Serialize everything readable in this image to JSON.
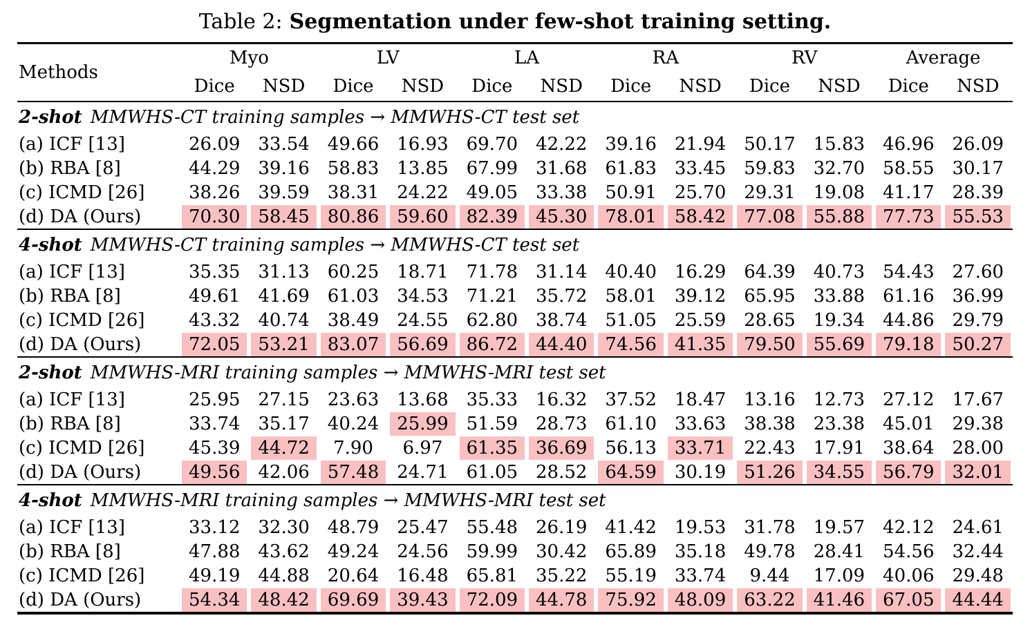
{
  "title": {
    "prefix": "Table 2:",
    "main": "Segmentation under few-shot training setting."
  },
  "colors": {
    "highlight": "#f9c0c2",
    "text": "#000000",
    "background": "#ffffff"
  },
  "header": {
    "methods_label": "Methods",
    "groups": [
      "Myo",
      "LV",
      "LA",
      "RA",
      "RV",
      "Average"
    ],
    "subcolumns": [
      "Dice",
      "NSD"
    ]
  },
  "sections": [
    {
      "shot": "2-shot",
      "caption": "MMWHS-CT training samples → MMWHS-CT test set",
      "rows": [
        {
          "method": "(a) ICF [13]",
          "values": [
            "26.09",
            "33.54",
            "49.66",
            "16.93",
            "69.70",
            "42.22",
            "39.16",
            "21.94",
            "50.17",
            "15.83",
            "46.96",
            "26.09"
          ],
          "highlight": []
        },
        {
          "method": "(b) RBA [8]",
          "values": [
            "44.29",
            "39.16",
            "58.83",
            "13.85",
            "67.99",
            "31.68",
            "61.83",
            "33.45",
            "59.83",
            "32.70",
            "58.55",
            "30.17"
          ],
          "highlight": []
        },
        {
          "method": "(c) ICMD [26]",
          "values": [
            "38.26",
            "39.59",
            "38.31",
            "24.22",
            "49.05",
            "33.38",
            "50.91",
            "25.70",
            "29.31",
            "19.08",
            "41.17",
            "28.39"
          ],
          "highlight": []
        },
        {
          "method": "(d) DA (Ours)",
          "values": [
            "70.30",
            "58.45",
            "80.86",
            "59.60",
            "82.39",
            "45.30",
            "78.01",
            "58.42",
            "77.08",
            "55.88",
            "77.73",
            "55.53"
          ],
          "highlight": [
            0,
            1,
            2,
            3,
            4,
            5,
            6,
            7,
            8,
            9,
            10,
            11
          ]
        }
      ]
    },
    {
      "shot": "4-shot",
      "caption": "MMWHS-CT training samples → MMWHS-CT test set",
      "rows": [
        {
          "method": "(a) ICF [13]",
          "values": [
            "35.35",
            "31.13",
            "60.25",
            "18.71",
            "71.78",
            "31.14",
            "40.40",
            "16.29",
            "64.39",
            "40.73",
            "54.43",
            "27.60"
          ],
          "highlight": []
        },
        {
          "method": "(b) RBA [8]",
          "values": [
            "49.61",
            "41.69",
            "61.03",
            "34.53",
            "71.21",
            "35.72",
            "58.01",
            "39.12",
            "65.95",
            "33.88",
            "61.16",
            "36.99"
          ],
          "highlight": []
        },
        {
          "method": "(c) ICMD [26]",
          "values": [
            "43.32",
            "40.74",
            "38.49",
            "24.55",
            "62.80",
            "38.74",
            "51.05",
            "25.59",
            "28.65",
            "19.34",
            "44.86",
            "29.79"
          ],
          "highlight": []
        },
        {
          "method": "(d) DA (Ours)",
          "values": [
            "72.05",
            "53.21",
            "83.07",
            "56.69",
            "86.72",
            "44.40",
            "74.56",
            "41.35",
            "79.50",
            "55.69",
            "79.18",
            "50.27"
          ],
          "highlight": [
            0,
            1,
            2,
            3,
            4,
            5,
            6,
            7,
            8,
            9,
            10,
            11
          ]
        }
      ]
    },
    {
      "shot": "2-shot",
      "caption": "MMWHS-MRI training samples → MMWHS-MRI test set",
      "rows": [
        {
          "method": "(a) ICF [13]",
          "values": [
            "25.95",
            "27.15",
            "23.63",
            "13.68",
            "35.33",
            "16.32",
            "37.52",
            "18.47",
            "13.16",
            "12.73",
            "27.12",
            "17.67"
          ],
          "highlight": []
        },
        {
          "method": "(b) RBA [8]",
          "values": [
            "33.74",
            "35.17",
            "40.24",
            "25.99",
            "51.59",
            "28.73",
            "61.10",
            "33.63",
            "38.38",
            "23.38",
            "45.01",
            "29.38"
          ],
          "highlight": [
            3
          ]
        },
        {
          "method": "(c) ICMD [26]",
          "values": [
            "45.39",
            "44.72",
            "7.90",
            "6.97",
            "61.35",
            "36.69",
            "56.13",
            "33.71",
            "22.43",
            "17.91",
            "38.64",
            "28.00"
          ],
          "highlight": [
            1,
            4,
            5,
            7
          ]
        },
        {
          "method": "(d) DA (Ours)",
          "values": [
            "49.56",
            "42.06",
            "57.48",
            "24.71",
            "61.05",
            "28.52",
            "64.59",
            "30.19",
            "51.26",
            "34.55",
            "56.79",
            "32.01"
          ],
          "highlight": [
            0,
            2,
            6,
            8,
            9,
            10,
            11
          ]
        }
      ]
    },
    {
      "shot": "4-shot",
      "caption": "MMWHS-MRI training samples → MMWHS-MRI test set",
      "rows": [
        {
          "method": "(a) ICF [13]",
          "values": [
            "33.12",
            "32.30",
            "48.79",
            "25.47",
            "55.48",
            "26.19",
            "41.42",
            "19.53",
            "31.78",
            "19.57",
            "42.12",
            "24.61"
          ],
          "highlight": []
        },
        {
          "method": "(b) RBA [8]",
          "values": [
            "47.88",
            "43.62",
            "49.24",
            "24.56",
            "59.99",
            "30.42",
            "65.89",
            "35.18",
            "49.78",
            "28.41",
            "54.56",
            "32.44"
          ],
          "highlight": []
        },
        {
          "method": "(c) ICMD [26]",
          "values": [
            "49.19",
            "44.88",
            "20.64",
            "16.48",
            "65.81",
            "35.22",
            "55.19",
            "33.74",
            "9.44",
            "17.09",
            "40.06",
            "29.48"
          ],
          "highlight": []
        },
        {
          "method": "(d) DA (Ours)",
          "values": [
            "54.34",
            "48.42",
            "69.69",
            "39.43",
            "72.09",
            "44.78",
            "75.92",
            "48.09",
            "63.22",
            "41.46",
            "67.05",
            "44.44"
          ],
          "highlight": [
            0,
            1,
            2,
            3,
            4,
            5,
            6,
            7,
            8,
            9,
            10,
            11
          ]
        }
      ]
    }
  ]
}
